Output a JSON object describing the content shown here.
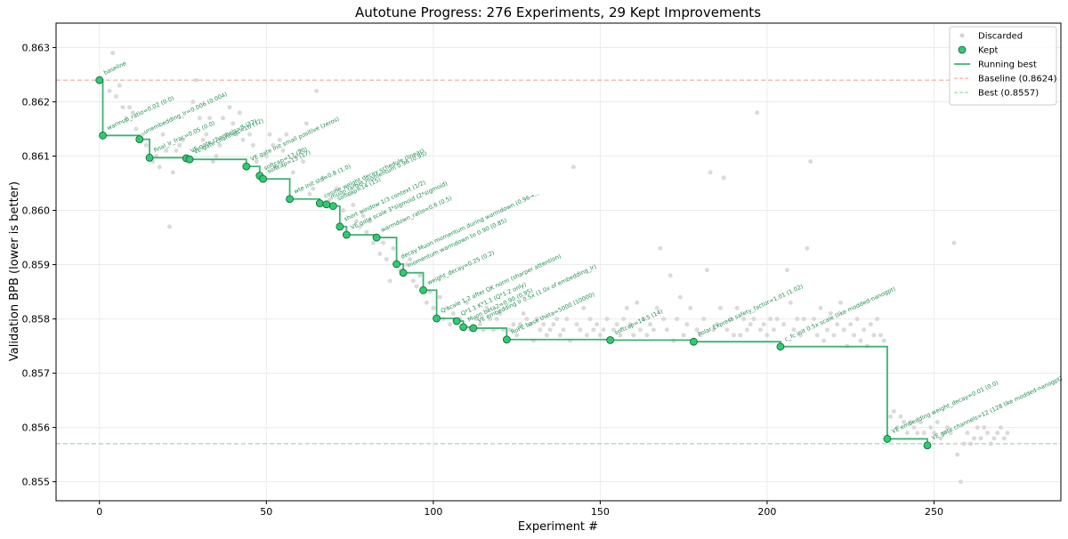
{
  "chart_data": {
    "type": "scatter",
    "title": "Autotune Progress: 276 Experiments, 29 Kept Improvements",
    "xlabel": "Experiment #",
    "ylabel": "Validation BPB (lower is better)",
    "xlim": [
      -13,
      288
    ],
    "ylim": [
      0.85465,
      0.86345
    ],
    "xticks": [
      0,
      50,
      100,
      150,
      200,
      250
    ],
    "yticks": [
      0.855,
      0.856,
      0.857,
      0.858,
      0.859,
      0.86,
      0.861,
      0.862,
      0.863
    ],
    "grid": true,
    "legend_position": "top-right",
    "colors": {
      "discarded": "#d3d3d3",
      "kept": "#2ecc71",
      "kept_edge": "#1a5c35",
      "running_best": "#3cb371",
      "baseline_line": "#e8a090",
      "best_line": "#7fd49a",
      "annotation": "#1f8f4f"
    },
    "legend": [
      {
        "key": "discarded",
        "label": "Discarded"
      },
      {
        "key": "kept",
        "label": "Kept"
      },
      {
        "key": "running_best",
        "label": "Running best"
      },
      {
        "key": "baseline",
        "label": "Baseline (0.8624)"
      },
      {
        "key": "best",
        "label": "Best (0.8557)"
      }
    ],
    "baseline_value": 0.8624,
    "best_value": 0.8557,
    "kept": [
      {
        "x": 0,
        "y": 0.8624,
        "label": "baseline"
      },
      {
        "x": 1,
        "y": 0.86138,
        "label": "warmup_ratio=0.02 (0.0)"
      },
      {
        "x": 12,
        "y": 0.86131,
        "label": "unembedding_lr=0.006 (0.004)"
      },
      {
        "x": 15,
        "y": 0.86097,
        "label": "final_lr_frac=0.05 (0.0)"
      },
      {
        "x": 26,
        "y": 0.86096,
        "label": "VE gate channels=8 (32)"
      },
      {
        "x": 27,
        "y": 0.86094,
        "label": "VE gate channels=16 (32)"
      },
      {
        "x": 44,
        "y": 0.86081,
        "label": "VE gate init small positive (zeros)"
      },
      {
        "x": 48,
        "y": 0.86064,
        "label": "softcap=17 (20)"
      },
      {
        "x": 49,
        "y": 0.86058,
        "label": "softcap=15 (17)"
      },
      {
        "x": 57,
        "y": 0.86021,
        "label": "wte init std=0.8 (1.0)"
      },
      {
        "x": 66,
        "y": 0.86013,
        "label": "cosine weight decay schedule (linear)"
      },
      {
        "x": 68,
        "y": 0.86011,
        "label": "muon target momentum 0.96 (0.95)"
      },
      {
        "x": 70,
        "y": 0.86008,
        "label": "softcap=14 (15)"
      },
      {
        "x": 72,
        "y": 0.8597,
        "label": "short window 1/3 context (1/2)"
      },
      {
        "x": 74,
        "y": 0.85955,
        "label": "VE gate scale 3*sigmoid (2*sigmoid)"
      },
      {
        "x": 83,
        "y": 0.8595,
        "label": "warmdown_ratio=0.6 (0.5)"
      },
      {
        "x": 89,
        "y": 0.85901,
        "label": "decay Muon momentum during warmdown (0.96→..."
      },
      {
        "x": 91,
        "y": 0.85885,
        "label": "momentum warmdown to 0.90 (0.85)"
      },
      {
        "x": 97,
        "y": 0.85853,
        "label": "weight_decay=0.25 (0.2)"
      },
      {
        "x": 101,
        "y": 0.85801,
        "label": "Q scale 1.2 after QK norm (sharper attention)"
      },
      {
        "x": 107,
        "y": 0.85796,
        "label": "Q*1.1 K*1.1 (Q*1.2 only)"
      },
      {
        "x": 109,
        "y": 0.85785,
        "label": "Muon beta2=0.90 (0.95)"
      },
      {
        "x": 112,
        "y": 0.85783,
        "label": "VE embedding lr 0.5x (1.0x of embedding_lr)"
      },
      {
        "x": 122,
        "y": 0.85762,
        "label": "RoPE base theta=5000 (10000)"
      },
      {
        "x": 153,
        "y": 0.85761,
        "label": "softcap=14.5 (14)"
      },
      {
        "x": 178,
        "y": 0.85758,
        "label": "Polar Express safety_factor=1.01 (1.02)"
      },
      {
        "x": 204,
        "y": 0.85749,
        "label": "c_fc init 0.5x scale (like modded-nanogpt)"
      },
      {
        "x": 236,
        "y": 0.85579,
        "label": "VE embedding weight_decay=0.01 (0.0)"
      },
      {
        "x": 248,
        "y": 0.85567,
        "label": "VE gate channels=12 (128 like modded-nanogpt)"
      }
    ],
    "discarded": [
      [
        3,
        0.8622
      ],
      [
        4,
        0.8629
      ],
      [
        5,
        0.8621
      ],
      [
        6,
        0.8623
      ],
      [
        7,
        0.8619
      ],
      [
        8,
        0.8617
      ],
      [
        9,
        0.8619
      ],
      [
        10,
        0.8618
      ],
      [
        11,
        0.8615
      ],
      [
        13,
        0.8614
      ],
      [
        14,
        0.8612
      ],
      [
        16,
        0.8609
      ],
      [
        17,
        0.861
      ],
      [
        18,
        0.8608
      ],
      [
        19,
        0.8614
      ],
      [
        20,
        0.8611
      ],
      [
        21,
        0.8597
      ],
      [
        22,
        0.8607
      ],
      [
        23,
        0.8611
      ],
      [
        24,
        0.8612
      ],
      [
        25,
        0.8613
      ],
      [
        28,
        0.862
      ],
      [
        29,
        0.8624
      ],
      [
        30,
        0.8617
      ],
      [
        31,
        0.8613
      ],
      [
        32,
        0.8614
      ],
      [
        33,
        0.8617
      ],
      [
        34,
        0.8609
      ],
      [
        35,
        0.861
      ],
      [
        36,
        0.8612
      ],
      [
        37,
        0.8617
      ],
      [
        38,
        0.8614
      ],
      [
        39,
        0.8619
      ],
      [
        40,
        0.8616
      ],
      [
        41,
        0.8614
      ],
      [
        42,
        0.8618
      ],
      [
        43,
        0.8613
      ],
      [
        45,
        0.8614
      ],
      [
        46,
        0.8612
      ],
      [
        47,
        0.8609
      ],
      [
        50,
        0.861
      ],
      [
        51,
        0.8614
      ],
      [
        52,
        0.8612
      ],
      [
        53,
        0.8608
      ],
      [
        54,
        0.8613
      ],
      [
        55,
        0.8611
      ],
      [
        56,
        0.8614
      ],
      [
        58,
        0.8607
      ],
      [
        59,
        0.861
      ],
      [
        60,
        0.8611
      ],
      [
        61,
        0.8609
      ],
      [
        62,
        0.8616
      ],
      [
        63,
        0.8603
      ],
      [
        64,
        0.8604
      ],
      [
        65,
        0.8622
      ],
      [
        67,
        0.8606
      ],
      [
        69,
        0.8602
      ],
      [
        71,
        0.8604
      ],
      [
        73,
        0.86
      ],
      [
        75,
        0.8603
      ],
      [
        76,
        0.8601
      ],
      [
        77,
        0.8598
      ],
      [
        78,
        0.8597
      ],
      [
        79,
        0.8599
      ],
      [
        80,
        0.8596
      ],
      [
        81,
        0.8598
      ],
      [
        82,
        0.8594
      ],
      [
        84,
        0.8592
      ],
      [
        85,
        0.8594
      ],
      [
        86,
        0.8591
      ],
      [
        87,
        0.8587
      ],
      [
        88,
        0.8593
      ],
      [
        90,
        0.8589
      ],
      [
        92,
        0.859
      ],
      [
        93,
        0.8591
      ],
      [
        94,
        0.8587
      ],
      [
        95,
        0.8586
      ],
      [
        96,
        0.8588
      ],
      [
        98,
        0.8583
      ],
      [
        99,
        0.8585
      ],
      [
        100,
        0.8582
      ],
      [
        102,
        0.8584
      ],
      [
        103,
        0.858
      ],
      [
        104,
        0.8582
      ],
      [
        105,
        0.8579
      ],
      [
        106,
        0.8581
      ],
      [
        108,
        0.858
      ],
      [
        110,
        0.8583
      ],
      [
        111,
        0.8578
      ],
      [
        113,
        0.858
      ],
      [
        114,
        0.8579
      ],
      [
        115,
        0.8578
      ],
      [
        116,
        0.8582
      ],
      [
        117,
        0.858
      ],
      [
        118,
        0.8578
      ],
      [
        119,
        0.858
      ],
      [
        120,
        0.8581
      ],
      [
        121,
        0.8578
      ],
      [
        123,
        0.8578
      ],
      [
        124,
        0.8579
      ],
      [
        125,
        0.8577
      ],
      [
        126,
        0.8579
      ],
      [
        127,
        0.8581
      ],
      [
        128,
        0.858
      ],
      [
        129,
        0.8579
      ],
      [
        130,
        0.8576
      ],
      [
        131,
        0.858
      ],
      [
        132,
        0.8578
      ],
      [
        133,
        0.8579
      ],
      [
        134,
        0.8577
      ],
      [
        135,
        0.8578
      ],
      [
        136,
        0.8579
      ],
      [
        137,
        0.858
      ],
      [
        138,
        0.8577
      ],
      [
        139,
        0.8578
      ],
      [
        140,
        0.858
      ],
      [
        141,
        0.8576
      ],
      [
        142,
        0.8608
      ],
      [
        143,
        0.8579
      ],
      [
        144,
        0.8578
      ],
      [
        145,
        0.8582
      ],
      [
        146,
        0.8577
      ],
      [
        147,
        0.858
      ],
      [
        148,
        0.8578
      ],
      [
        149,
        0.8579
      ],
      [
        150,
        0.8577
      ],
      [
        151,
        0.8578
      ],
      [
        152,
        0.858
      ],
      [
        154,
        0.8578
      ],
      [
        155,
        0.8579
      ],
      [
        156,
        0.8577
      ],
      [
        157,
        0.858
      ],
      [
        158,
        0.8582
      ],
      [
        159,
        0.8579
      ],
      [
        160,
        0.8577
      ],
      [
        161,
        0.8583
      ],
      [
        162,
        0.8578
      ],
      [
        163,
        0.858
      ],
      [
        164,
        0.8577
      ],
      [
        165,
        0.8579
      ],
      [
        166,
        0.8578
      ],
      [
        167,
        0.8582
      ],
      [
        168,
        0.8593
      ],
      [
        169,
        0.858
      ],
      [
        170,
        0.8578
      ],
      [
        171,
        0.8588
      ],
      [
        172,
        0.8576
      ],
      [
        173,
        0.858
      ],
      [
        174,
        0.8584
      ],
      [
        175,
        0.8577
      ],
      [
        176,
        0.8579
      ],
      [
        177,
        0.8582
      ],
      [
        179,
        0.8578
      ],
      [
        180,
        0.8577
      ],
      [
        181,
        0.858
      ],
      [
        182,
        0.8589
      ],
      [
        183,
        0.8607
      ],
      [
        184,
        0.8578
      ],
      [
        185,
        0.8579
      ],
      [
        186,
        0.8582
      ],
      [
        187,
        0.8606
      ],
      [
        188,
        0.8578
      ],
      [
        189,
        0.858
      ],
      [
        190,
        0.8577
      ],
      [
        191,
        0.8582
      ],
      [
        192,
        0.8577
      ],
      [
        193,
        0.858
      ],
      [
        194,
        0.8578
      ],
      [
        195,
        0.8579
      ],
      [
        196,
        0.858
      ],
      [
        197,
        0.8618
      ],
      [
        198,
        0.8578
      ],
      [
        199,
        0.8579
      ],
      [
        200,
        0.8577
      ],
      [
        201,
        0.858
      ],
      [
        202,
        0.8578
      ],
      [
        203,
        0.858
      ],
      [
        205,
        0.8579
      ],
      [
        206,
        0.8589
      ],
      [
        207,
        0.8583
      ],
      [
        208,
        0.8578
      ],
      [
        209,
        0.858
      ],
      [
        210,
        0.8577
      ],
      [
        211,
        0.858
      ],
      [
        212,
        0.8593
      ],
      [
        213,
        0.8609
      ],
      [
        214,
        0.858
      ],
      [
        215,
        0.8577
      ],
      [
        216,
        0.8582
      ],
      [
        217,
        0.8576
      ],
      [
        218,
        0.8578
      ],
      [
        219,
        0.8581
      ],
      [
        220,
        0.8577
      ],
      [
        221,
        0.8579
      ],
      [
        222,
        0.8583
      ],
      [
        223,
        0.8578
      ],
      [
        224,
        0.8575
      ],
      [
        225,
        0.8579
      ],
      [
        226,
        0.8577
      ],
      [
        227,
        0.858
      ],
      [
        228,
        0.8576
      ],
      [
        229,
        0.8578
      ],
      [
        230,
        0.8575
      ],
      [
        231,
        0.8579
      ],
      [
        232,
        0.8577
      ],
      [
        233,
        0.858
      ],
      [
        234,
        0.8577
      ],
      [
        235,
        0.8576
      ],
      [
        237,
        0.8562
      ],
      [
        238,
        0.8563
      ],
      [
        239,
        0.856
      ],
      [
        240,
        0.8562
      ],
      [
        241,
        0.8561
      ],
      [
        242,
        0.8559
      ],
      [
        243,
        0.8561
      ],
      [
        244,
        0.856
      ],
      [
        245,
        0.8559
      ],
      [
        246,
        0.8561
      ],
      [
        247,
        0.8559
      ],
      [
        249,
        0.856
      ],
      [
        250,
        0.8559
      ],
      [
        251,
        0.8561
      ],
      [
        252,
        0.8558
      ],
      [
        253,
        0.8559
      ],
      [
        254,
        0.856
      ],
      [
        255,
        0.8559
      ],
      [
        256,
        0.8594
      ],
      [
        257,
        0.8555
      ],
      [
        258,
        0.855
      ],
      [
        259,
        0.8557
      ],
      [
        260,
        0.8559
      ],
      [
        261,
        0.8557
      ],
      [
        262,
        0.8558
      ],
      [
        263,
        0.856
      ],
      [
        264,
        0.8558
      ],
      [
        265,
        0.856
      ],
      [
        266,
        0.8559
      ],
      [
        267,
        0.8557
      ],
      [
        268,
        0.8558
      ],
      [
        269,
        0.8559
      ],
      [
        270,
        0.856
      ],
      [
        271,
        0.8558
      ],
      [
        272,
        0.8559
      ]
    ]
  }
}
